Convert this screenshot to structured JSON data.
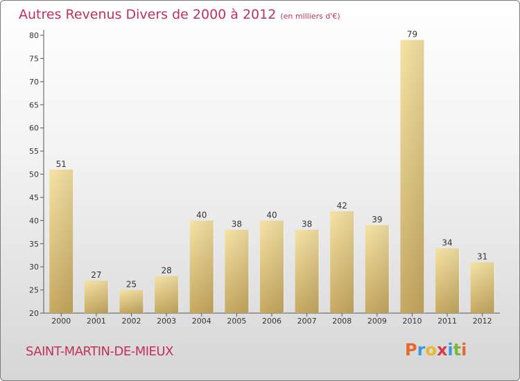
{
  "title": "Autres Revenus Divers de 2000 à 2012",
  "unit": "(en milliers d'€)",
  "commune": "SAINT-MARTIN-DE-MIEUX",
  "brand": {
    "letters": [
      "P",
      "r",
      "o",
      "x",
      "i",
      "t",
      "i"
    ],
    "colors": [
      "#e8672a",
      "#3a9ad9",
      "#e8b92a",
      "#d93a4a",
      "#3a9ad9",
      "#7ab83a",
      "#e8672a"
    ]
  },
  "colors": {
    "accent": "#c0305a",
    "bar": "#e2c67c"
  },
  "chart_data": {
    "type": "bar",
    "categories": [
      "2000",
      "2001",
      "2002",
      "2003",
      "2004",
      "2005",
      "2006",
      "2007",
      "2008",
      "2009",
      "2010",
      "2011",
      "2012"
    ],
    "values": [
      51,
      27,
      25,
      28,
      40,
      38,
      40,
      38,
      42,
      39,
      79,
      34,
      31
    ],
    "ylim": [
      20,
      80
    ],
    "yticks": [
      20,
      25,
      30,
      35,
      40,
      45,
      50,
      55,
      60,
      65,
      70,
      75,
      80
    ],
    "grid": false
  }
}
